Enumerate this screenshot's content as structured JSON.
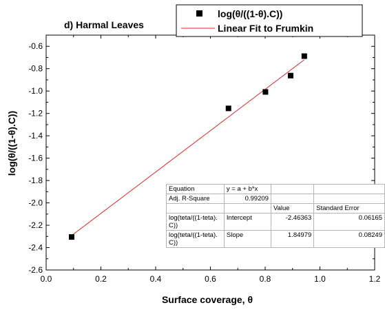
{
  "chart_data": {
    "type": "scatter",
    "title": "d) Harmal Leaves",
    "xlabel": "Surface coverage, θ",
    "ylabel": "log(θ/((1-θ).C))",
    "xlim": [
      0.0,
      1.2
    ],
    "ylim": [
      -2.6,
      -0.5
    ],
    "xticks": [
      "0.0",
      "0.2",
      "0.4",
      "0.6",
      "0.8",
      "1.0",
      "1.2"
    ],
    "yticks": [
      "-0.6",
      "-0.8",
      "-1.0",
      "-1.2",
      "-1.4",
      "-1.6",
      "-1.8",
      "-2.0",
      "-2.2",
      "-2.4",
      "-2.6"
    ],
    "grid": false,
    "legend_position": "top-right",
    "series": [
      {
        "name": "log(θ/((1-θ).C))",
        "marker": "square",
        "color": "#000000",
        "x": [
          0.093,
          0.666,
          0.801,
          0.893,
          0.943
        ],
        "y": [
          -2.305,
          -1.155,
          -1.008,
          -0.862,
          -0.688
        ]
      },
      {
        "name": "Linear Fit to Frumkin",
        "type": "line",
        "color": "#d8262b",
        "x": [
          0.093,
          0.943
        ],
        "y": [
          -2.292,
          -0.72
        ]
      }
    ],
    "fit_table": {
      "rows": [
        [
          "Equation",
          "y = a + b*x",
          "",
          ""
        ],
        [
          "Adj. R-Square",
          "0.99209",
          "",
          ""
        ],
        [
          "",
          "",
          "Value",
          "Standard Error"
        ],
        [
          "log(teta/((1-teta).\nC))",
          "Intercept",
          "-2.46363",
          "0.06165"
        ],
        [
          "log(teta/((1-teta).\nC))",
          "Slope",
          "1.84979",
          "0.08249"
        ]
      ]
    }
  }
}
